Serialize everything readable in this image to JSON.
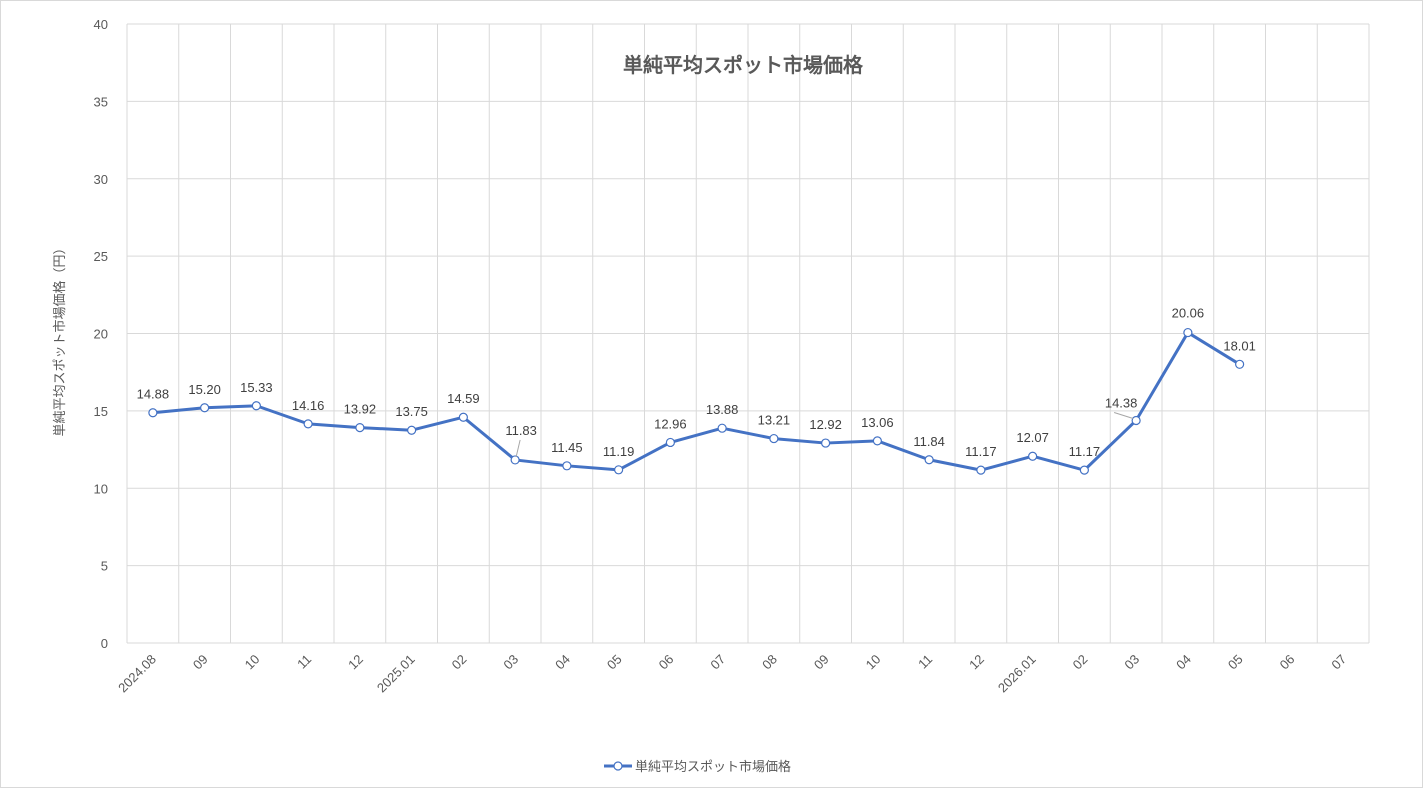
{
  "chart_data": {
    "type": "line",
    "title": "単純平均スポット市場価格",
    "xlabel": "",
    "ylabel": "単純平均スポット市場価格（円）",
    "ylim": [
      0,
      40
    ],
    "yticks": [
      0,
      5,
      10,
      15,
      20,
      25,
      30,
      35,
      40
    ],
    "categories": [
      "2024.08",
      "09",
      "10",
      "11",
      "12",
      "2025.01",
      "02",
      "03",
      "04",
      "05",
      "06",
      "07",
      "08",
      "09",
      "10",
      "11",
      "12",
      "2026.01",
      "02",
      "03",
      "04",
      "05",
      "06",
      "07"
    ],
    "series": [
      {
        "name": "単純平均スポット市場価格",
        "color": "#4472c4",
        "values": [
          14.88,
          15.2,
          15.33,
          14.16,
          13.92,
          13.75,
          14.59,
          11.83,
          11.45,
          11.19,
          12.96,
          13.88,
          13.21,
          12.92,
          13.06,
          11.84,
          11.17,
          12.07,
          11.17,
          14.38,
          20.06,
          18.01,
          null,
          null
        ],
        "labels": [
          "14.88",
          "15.20",
          "15.33",
          "14.16",
          "13.92",
          "13.75",
          "14.59",
          "11.83",
          "11.45",
          "11.19",
          "12.96",
          "13.88",
          "13.21",
          "12.92",
          "13.06",
          "11.84",
          "11.17",
          "12.07",
          "11.17",
          "14.38",
          "20.06",
          "18.01",
          "",
          ""
        ]
      }
    ],
    "grid": true,
    "legend_position": "bottom"
  }
}
